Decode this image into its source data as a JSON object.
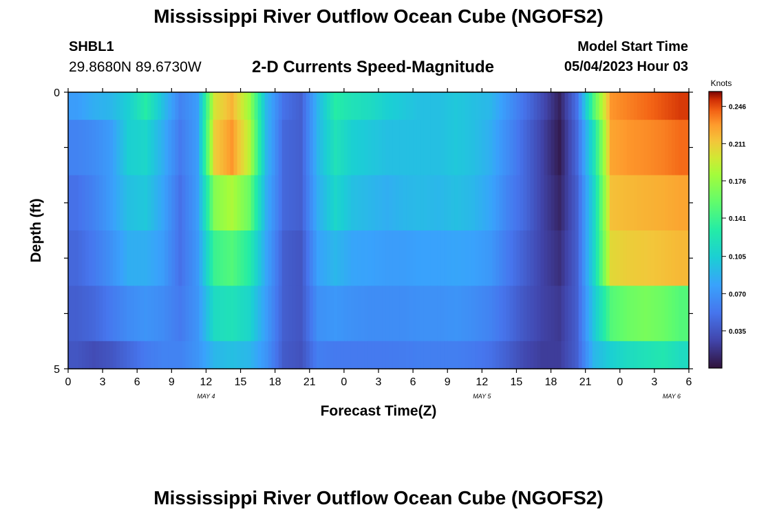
{
  "header": {
    "title": "Mississippi River Outflow Ocean Cube (NGOFS2)",
    "station": "SHBL1",
    "coordinates": "29.8680N  89.6730W",
    "subtitle": "2-D Currents Speed-Magnitude",
    "model_start_label": "Model Start Time",
    "model_start_value": "05/04/2023 Hour 03"
  },
  "footer": {
    "title": "Mississippi River Outflow Ocean Cube (NGOFS2)"
  },
  "chart_data": {
    "type": "heatmap",
    "xlabel": "Forecast Time(Z)",
    "ylabel": "Depth (ft)",
    "x_tick_labels": [
      "0",
      "3",
      "6",
      "9",
      "12",
      "15",
      "18",
      "21",
      "0",
      "3",
      "6",
      "9",
      "12",
      "15",
      "18",
      "21",
      "0",
      "3",
      "6"
    ],
    "date_labels": [
      "MAY 4",
      "MAY 5",
      "MAY 6"
    ],
    "y_tick_labels": [
      "0",
      "5"
    ],
    "ylim": [
      0,
      5
    ],
    "colorbar": {
      "unit": "Knots",
      "ticks": [
        "0.246",
        "0.211",
        "0.176",
        "0.141",
        "0.105",
        "0.070",
        "0.035"
      ],
      "range": [
        0.0,
        0.26
      ]
    },
    "layers": [
      "0-0.5 ft",
      "0.5-1.5 ft",
      "1.5-2.5 ft",
      "2.5-3.5 ft",
      "3.5-4.5 ft",
      "4.5-5 ft"
    ],
    "z_knots": [
      [
        0.075,
        0.085,
        0.09,
        0.105,
        0.13,
        0.095,
        0.06,
        0.075,
        0.2,
        0.22,
        0.18,
        0.09,
        0.05,
        0.04,
        0.09,
        0.13,
        0.12,
        0.115,
        0.105,
        0.1,
        0.095,
        0.095,
        0.1,
        0.095,
        0.09,
        0.07,
        0.05,
        0.03,
        0.008,
        0.05,
        0.15,
        0.23,
        0.235,
        0.24,
        0.245,
        0.25
      ],
      [
        0.06,
        0.065,
        0.075,
        0.105,
        0.11,
        0.085,
        0.055,
        0.075,
        0.21,
        0.23,
        0.19,
        0.09,
        0.045,
        0.04,
        0.09,
        0.12,
        0.105,
        0.1,
        0.095,
        0.095,
        0.095,
        0.095,
        0.1,
        0.095,
        0.085,
        0.065,
        0.045,
        0.025,
        0.005,
        0.045,
        0.12,
        0.225,
        0.23,
        0.232,
        0.235,
        0.24
      ],
      [
        0.05,
        0.06,
        0.075,
        0.095,
        0.1,
        0.08,
        0.05,
        0.075,
        0.17,
        0.185,
        0.16,
        0.085,
        0.045,
        0.04,
        0.085,
        0.11,
        0.095,
        0.09,
        0.085,
        0.09,
        0.092,
        0.09,
        0.095,
        0.09,
        0.08,
        0.06,
        0.045,
        0.025,
        0.01,
        0.04,
        0.11,
        0.215,
        0.218,
        0.22,
        0.222,
        0.225
      ],
      [
        0.045,
        0.055,
        0.068,
        0.085,
        0.085,
        0.075,
        0.05,
        0.072,
        0.14,
        0.15,
        0.13,
        0.08,
        0.04,
        0.035,
        0.078,
        0.09,
        0.08,
        0.078,
        0.075,
        0.075,
        0.078,
        0.078,
        0.08,
        0.078,
        0.072,
        0.055,
        0.04,
        0.025,
        0.015,
        0.04,
        0.11,
        0.205,
        0.21,
        0.212,
        0.215,
        0.218
      ],
      [
        0.04,
        0.045,
        0.055,
        0.065,
        0.07,
        0.065,
        0.055,
        0.07,
        0.115,
        0.12,
        0.11,
        0.075,
        0.04,
        0.035,
        0.068,
        0.072,
        0.068,
        0.066,
        0.066,
        0.066,
        0.068,
        0.068,
        0.07,
        0.066,
        0.06,
        0.048,
        0.035,
        0.025,
        0.02,
        0.04,
        0.1,
        0.15,
        0.16,
        0.165,
        0.16,
        0.15
      ],
      [
        0.035,
        0.03,
        0.035,
        0.045,
        0.055,
        0.06,
        0.06,
        0.07,
        0.09,
        0.095,
        0.09,
        0.07,
        0.038,
        0.033,
        0.058,
        0.055,
        0.055,
        0.055,
        0.055,
        0.056,
        0.058,
        0.058,
        0.058,
        0.055,
        0.05,
        0.04,
        0.028,
        0.022,
        0.022,
        0.04,
        0.09,
        0.105,
        0.115,
        0.12,
        0.125,
        0.115
      ]
    ]
  }
}
